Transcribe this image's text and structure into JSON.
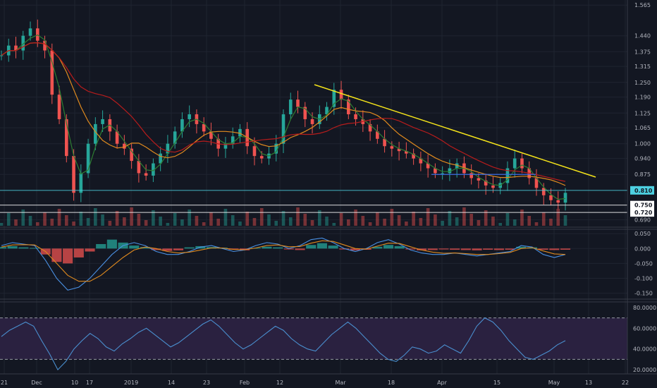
{
  "colors": {
    "background": "#131722",
    "grid": "#1f2430",
    "panel_border": "#363a45",
    "axis_text": "#b2b5be",
    "up": "#26a69a",
    "down": "#ef5350",
    "ma_fast": "#2e7d32",
    "ma_mid": "#e08a1e",
    "ma_slow": "#b71c1c",
    "trendline": "#f5e41a",
    "support_line": "#3d6de0",
    "macd_line": "#4a90e2",
    "signal_line": "#e08a1e",
    "rsi_line": "#4a8fcf",
    "rsi_band": "#2a2140"
  },
  "chart_data": [
    {
      "type": "line",
      "panel": "price",
      "y_ticks": [
        "1.565",
        "1.440",
        "1.375",
        "1.315",
        "1.250",
        "1.190",
        "1.125",
        "1.065",
        "1.000",
        "0.940",
        "0.875",
        "0.690"
      ],
      "ylim": [
        0.66,
        1.58
      ],
      "x_ticks": [
        "21",
        "Dec",
        "10",
        "17",
        "2019",
        "14",
        "23",
        "Feb",
        "12",
        "Mar",
        "18",
        "Apr",
        "15",
        "May",
        "13",
        "22"
      ],
      "price_markers": [
        {
          "label": "0.810",
          "value": 0.81,
          "color": "#4dd0e1"
        },
        {
          "label": "0.750",
          "value": 0.75,
          "color": "#ffffff"
        },
        {
          "label": "0.720",
          "value": 0.72,
          "color": "#ffffff"
        }
      ],
      "ohlc_close_path": [
        1.36,
        1.4,
        1.38,
        1.44,
        1.47,
        1.42,
        1.38,
        1.2,
        1.1,
        0.95,
        0.8,
        0.88,
        1.0,
        1.08,
        1.1,
        1.05,
        1.0,
        0.98,
        0.93,
        0.88,
        0.87,
        0.92,
        0.96,
        1.0,
        1.05,
        1.1,
        1.12,
        1.08,
        1.05,
        1.02,
        0.98,
        1.0,
        1.03,
        1.06,
        0.99,
        0.95,
        0.94,
        0.96,
        1.0,
        1.12,
        1.18,
        1.15,
        1.1,
        1.08,
        1.12,
        1.15,
        1.22,
        1.18,
        1.12,
        1.1,
        1.08,
        1.05,
        1.02,
        0.99,
        0.98,
        0.97,
        0.96,
        0.94,
        0.92,
        0.9,
        0.88,
        0.88,
        0.9,
        0.92,
        0.88,
        0.86,
        0.85,
        0.83,
        0.82,
        0.84,
        0.9,
        0.94,
        0.9,
        0.86,
        0.82,
        0.79,
        0.77,
        0.76,
        0.8
      ]
    },
    {
      "type": "bar",
      "panel": "macd",
      "y_ticks": [
        "0.050",
        "0.000",
        "-0.050",
        "-0.100",
        "-0.150"
      ],
      "ylim": [
        -0.17,
        0.06
      ],
      "histogram": [
        0.005,
        0.008,
        0.004,
        0.002,
        -0.02,
        -0.045,
        -0.05,
        -0.03,
        -0.01,
        0.015,
        0.03,
        0.02,
        0.01,
        0.005,
        -0.005,
        -0.008,
        -0.006,
        0.004,
        0.008,
        0.005,
        0.003,
        -0.004,
        -0.006,
        0.002,
        0.006,
        0.004,
        -0.003,
        -0.005,
        0.012,
        0.018,
        0.01,
        -0.003,
        -0.006,
        -0.004,
        0.006,
        0.012,
        0.008,
        -0.003,
        -0.006,
        -0.005,
        -0.003,
        -0.004,
        -0.005,
        -0.006,
        -0.004,
        -0.005,
        -0.004,
        0.006,
        0.004,
        -0.004,
        -0.005,
        -0.004
      ],
      "macd_line": [
        0.01,
        0.02,
        0.015,
        0.01,
        -0.04,
        -0.1,
        -0.14,
        -0.13,
        -0.1,
        -0.06,
        -0.02,
        0.01,
        0.02,
        0.01,
        -0.01,
        -0.02,
        -0.02,
        -0.01,
        0.005,
        0.01,
        0.0,
        -0.01,
        -0.005,
        0.01,
        0.02,
        0.015,
        0.0,
        0.01,
        0.03,
        0.035,
        0.02,
        0.0,
        -0.01,
        0.0,
        0.02,
        0.03,
        0.015,
        -0.005,
        -0.015,
        -0.02,
        -0.02,
        -0.015,
        -0.02,
        -0.025,
        -0.02,
        -0.015,
        -0.01,
        0.01,
        0.005,
        -0.02,
        -0.03,
        -0.02
      ],
      "signal_line": [
        0.005,
        0.012,
        0.013,
        0.012,
        -0.01,
        -0.05,
        -0.09,
        -0.11,
        -0.11,
        -0.09,
        -0.06,
        -0.03,
        -0.005,
        0.005,
        0.0,
        -0.01,
        -0.015,
        -0.012,
        -0.005,
        0.002,
        0.002,
        -0.003,
        -0.004,
        0.002,
        0.01,
        0.012,
        0.006,
        0.007,
        0.018,
        0.026,
        0.024,
        0.012,
        0.0,
        -0.002,
        0.008,
        0.018,
        0.017,
        0.006,
        -0.005,
        -0.012,
        -0.016,
        -0.015,
        -0.017,
        -0.02,
        -0.02,
        -0.017,
        -0.013,
        0.0,
        0.003,
        -0.008,
        -0.018,
        -0.02
      ]
    },
    {
      "type": "line",
      "panel": "rsi",
      "y_ticks": [
        "80.0000",
        "60.0000",
        "40.0000",
        "20.0000"
      ],
      "ylim": [
        16,
        84
      ],
      "bands": [
        70,
        30
      ],
      "values": [
        52,
        58,
        62,
        66,
        62,
        48,
        35,
        20,
        28,
        40,
        48,
        55,
        50,
        42,
        38,
        45,
        50,
        56,
        60,
        54,
        48,
        42,
        46,
        52,
        58,
        64,
        68,
        62,
        54,
        46,
        40,
        44,
        50,
        56,
        62,
        58,
        50,
        44,
        40,
        38,
        46,
        54,
        60,
        66,
        60,
        52,
        44,
        36,
        30,
        28,
        34,
        42,
        40,
        36,
        38,
        44,
        40,
        36,
        48,
        62,
        70,
        66,
        58,
        48,
        40,
        32,
        30,
        34,
        38,
        44,
        48
      ]
    }
  ]
}
